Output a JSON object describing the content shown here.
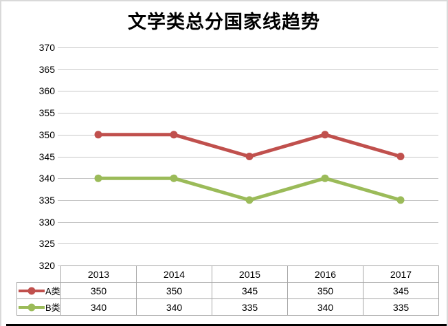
{
  "chart_data": {
    "type": "line",
    "title": "文学类总分国家线趋势",
    "categories": [
      "2013",
      "2014",
      "2015",
      "2016",
      "2017"
    ],
    "series": [
      {
        "name": "A类",
        "color": "#c0504d",
        "values": [
          350,
          350,
          345,
          350,
          345
        ]
      },
      {
        "name": "B类",
        "color": "#9bbb59",
        "values": [
          340,
          340,
          335,
          340,
          335
        ]
      }
    ],
    "ylim": [
      320,
      370
    ],
    "ytick_step": 5,
    "yticks": [
      370,
      365,
      360,
      355,
      350,
      345,
      340,
      335,
      330,
      325,
      320
    ],
    "grid": true,
    "gridline_color": "#c6c6c6",
    "table_border_color": "#a6a6a6",
    "axis_text_color": "#000000",
    "legend_position": "data-table-left",
    "data_table": true,
    "background_color": "#ffffff",
    "frame_border_color": "#d9d9d9",
    "window_edge_color": "#000000"
  }
}
